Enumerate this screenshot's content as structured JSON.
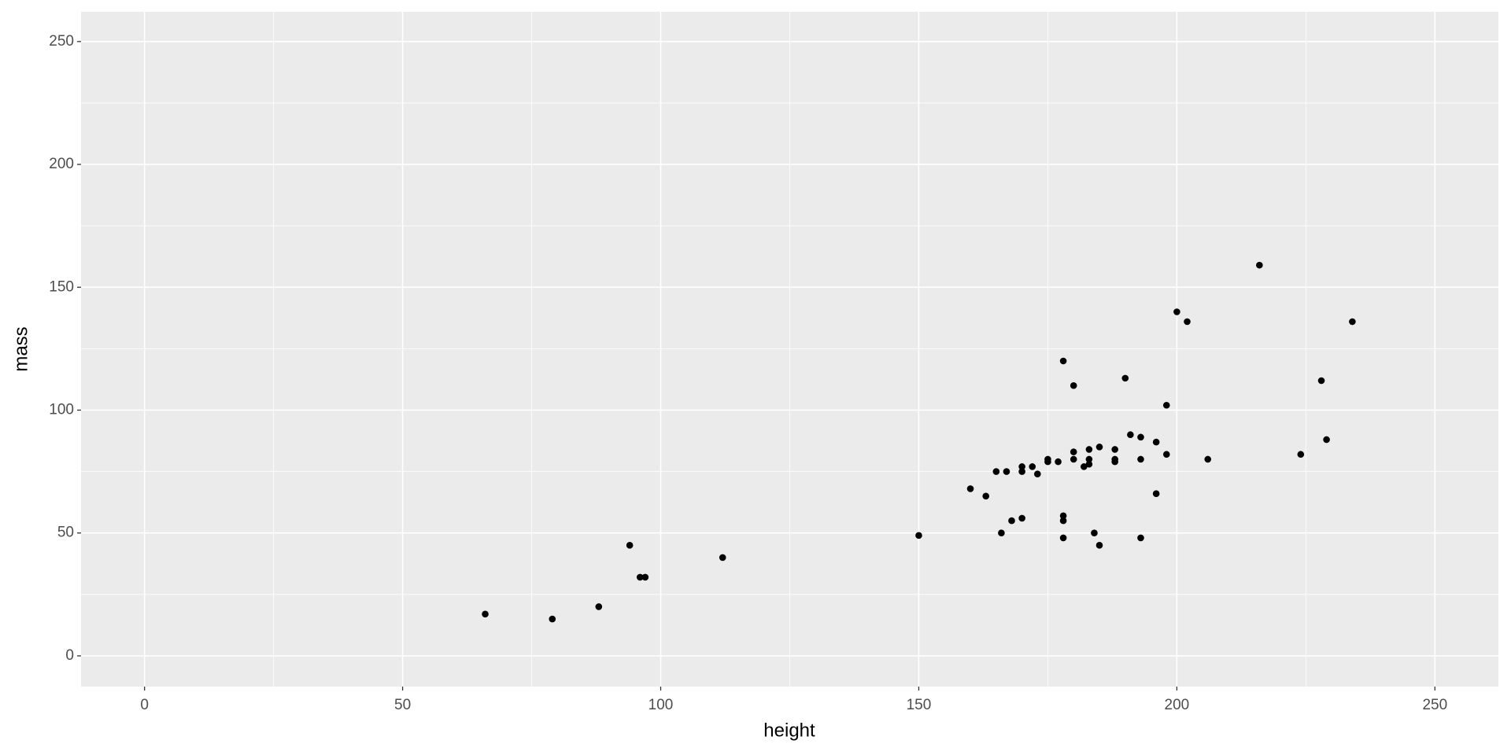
{
  "chart_data": {
    "type": "scatter",
    "x_label": "height",
    "y_label": "mass",
    "xlim": [
      -12.3,
      262.3
    ],
    "ylim": [
      -12.5,
      262.1
    ],
    "xticks": [
      0,
      50,
      100,
      150,
      200,
      250
    ],
    "yticks": [
      0,
      50,
      100,
      150,
      200,
      250
    ],
    "x_minor_ticks": [
      25,
      75,
      125,
      175,
      225
    ],
    "y_minor_ticks": [
      25,
      75,
      125,
      175,
      225
    ],
    "grid": true,
    "color": "#000000",
    "x": [
      66,
      79,
      88,
      94,
      96,
      97,
      112,
      150,
      160,
      163,
      165,
      166,
      167,
      168,
      170,
      170,
      170,
      172,
      173,
      175,
      175,
      177,
      178,
      178,
      178,
      178,
      180,
      180,
      180,
      182,
      183,
      183,
      183,
      184,
      185,
      185,
      188,
      188,
      188,
      190,
      191,
      193,
      193,
      193,
      196,
      196,
      198,
      198,
      200,
      202,
      206,
      216,
      224,
      228,
      229,
      234
    ],
    "y": [
      17,
      15,
      20,
      45,
      32,
      32,
      40,
      49,
      68,
      65,
      75,
      50,
      75,
      55,
      77,
      75,
      56,
      77,
      74,
      80,
      79,
      79,
      120,
      57,
      55,
      48,
      110,
      83,
      80,
      77,
      78,
      84,
      80,
      50,
      85,
      45,
      84,
      80,
      79,
      113,
      90,
      89,
      80,
      48,
      87,
      66,
      102,
      82,
      140,
      136,
      80,
      159,
      82,
      112,
      88,
      136
    ]
  }
}
